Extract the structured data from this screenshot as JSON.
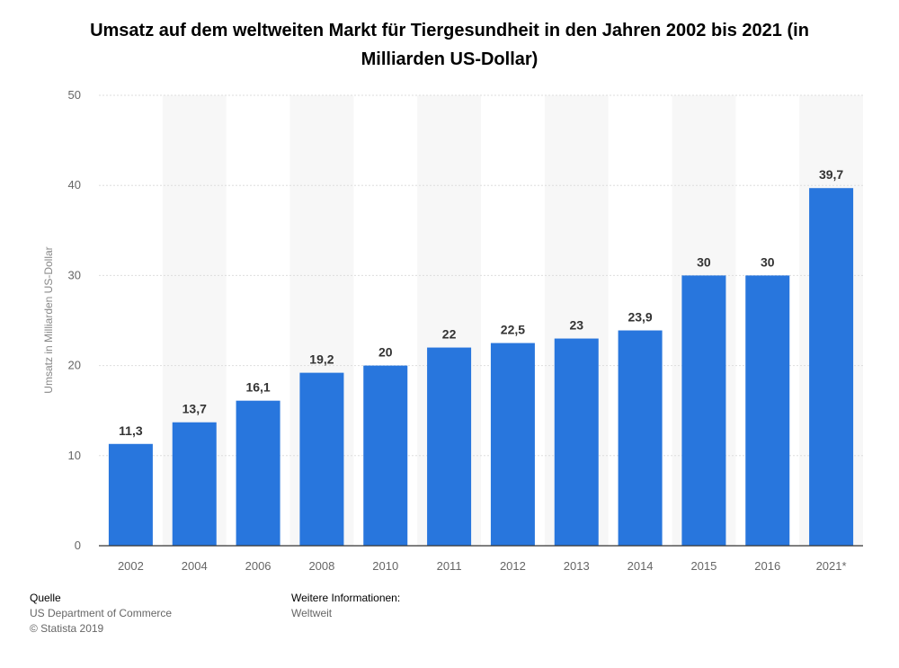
{
  "title": "Umsatz auf dem weltweiten Markt für Tiergesundheit in den Jahren 2002 bis 2021 (in Milliarden US-Dollar)",
  "chart_data": {
    "type": "bar",
    "title": "Umsatz auf dem weltweiten Markt für Tiergesundheit in den Jahren 2002 bis 2021 (in Milliarden US-Dollar)",
    "xlabel": "",
    "ylabel": "Umsatz in Milliarden US-Dollar",
    "ylim": [
      0,
      50
    ],
    "yticks": [
      0,
      10,
      20,
      30,
      40,
      50
    ],
    "grid": true,
    "categories": [
      "2002",
      "2004",
      "2006",
      "2008",
      "2010",
      "2011",
      "2012",
      "2013",
      "2014",
      "2015",
      "2016",
      "2021*"
    ],
    "values": [
      11.3,
      13.7,
      16.1,
      19.2,
      20,
      22,
      22.5,
      23,
      23.9,
      30,
      30,
      39.7
    ],
    "value_labels": [
      "11,3",
      "13,7",
      "16,1",
      "19,2",
      "20",
      "22",
      "22,5",
      "23",
      "23,9",
      "30",
      "30",
      "39,7"
    ],
    "bar_color": "#2876dd",
    "band_color": "#f7f7f7",
    "grid_color": "#dddddd"
  },
  "footer": {
    "source_heading": "Quelle",
    "source_text": "US Department of Commerce",
    "copyright": "© Statista 2019",
    "info_heading": "Weitere Informationen:",
    "info_text": "Weltweit"
  }
}
